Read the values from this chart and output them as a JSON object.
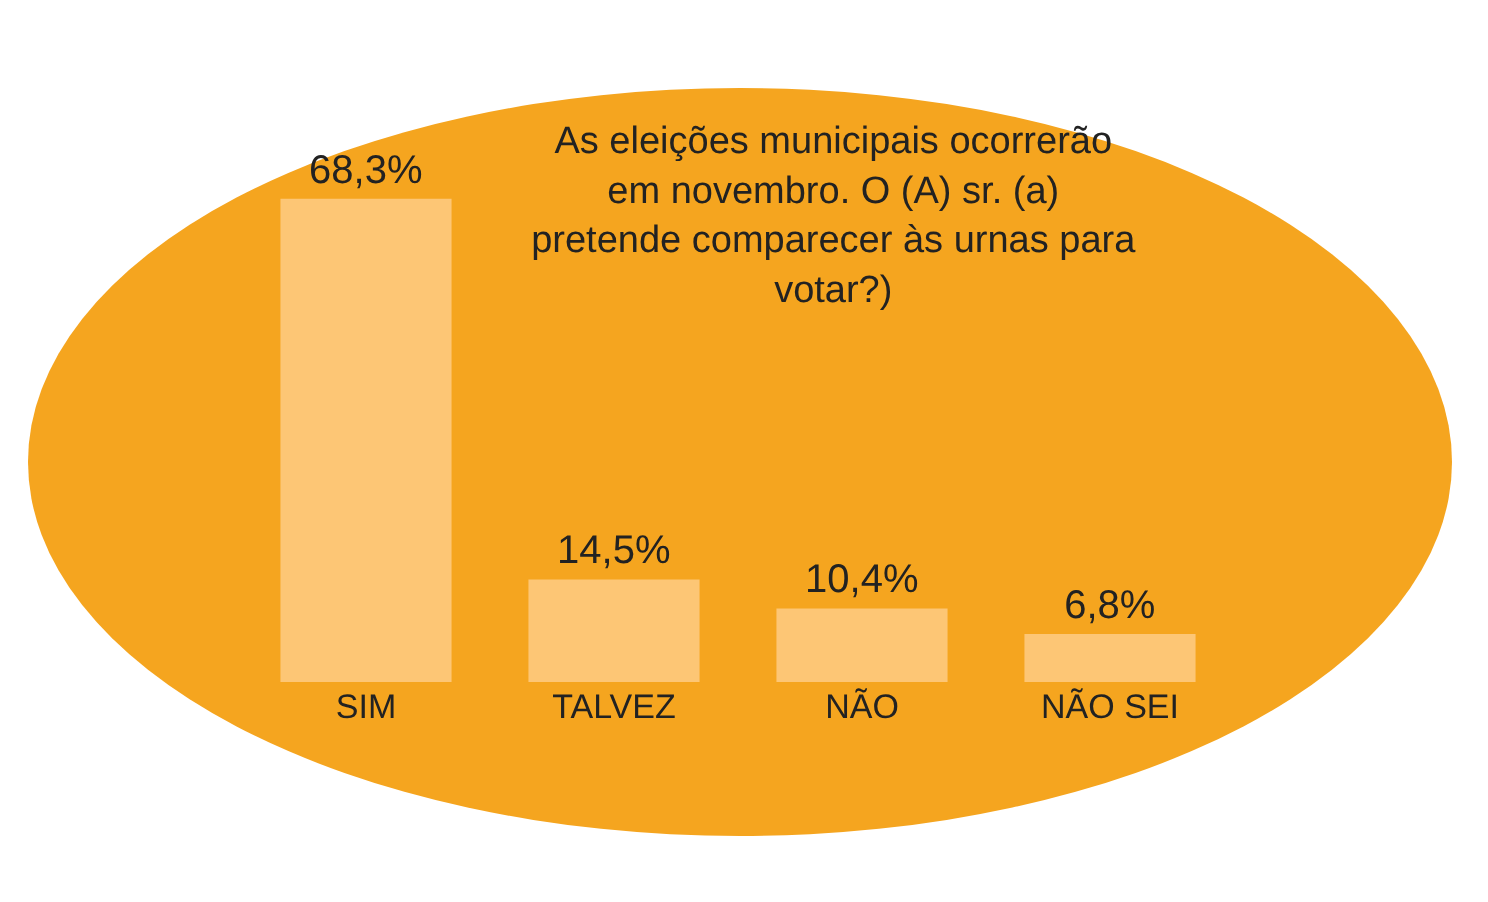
{
  "chart_data": {
    "type": "bar",
    "title": "As eleições municipais ocorrerão em novembro. O (A) sr. (a) pretende comparecer às urnas para votar?)",
    "categories": [
      "SIM",
      "TALVEZ",
      "NÃO",
      "NÃO SEI"
    ],
    "values": [
      68.3,
      14.5,
      10.4,
      6.8
    ],
    "value_labels": [
      "68,3%",
      "14,5%",
      "10,4%",
      "6,8%"
    ],
    "color": "#fdc675"
  }
}
